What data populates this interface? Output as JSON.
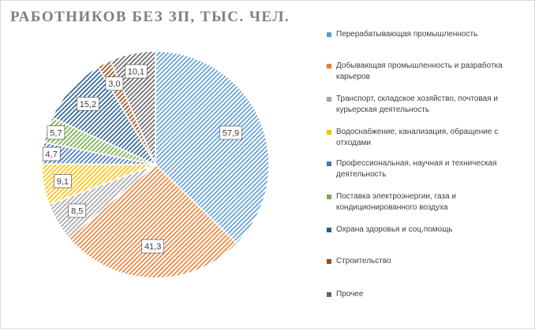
{
  "chart_data": {
    "type": "pie",
    "title": "РАБОТНИКОВ БЕЗ ЗП, ТЫС. ЧЕЛ.",
    "legend_position": "right",
    "slices": [
      {
        "label": "Перерабатывающая промышленность",
        "value": 57.9,
        "display": "57,9",
        "color": "#5b9bd5"
      },
      {
        "label": "Добывающая промышленность и разработка карьеров",
        "value": 41.3,
        "display": "41,3",
        "color": "#ed7d31"
      },
      {
        "label": "Транспорт, складское хозяйство, почтовая и курьерская деятельность",
        "value": 8.5,
        "display": "8,5",
        "color": "#a5a5a5"
      },
      {
        "label": "Водоснабжение, канализация, обращение с отходами",
        "value": 9.1,
        "display": "9,1",
        "color": "#ffc000"
      },
      {
        "label": "Профессиональная, научная и техническая деятельность",
        "value": 4.7,
        "display": "4,7",
        "color": "#4472c4"
      },
      {
        "label": "Поставка электроэнергии, газа и кондиционированного воздуха",
        "value": 5.7,
        "display": "5,7",
        "color": "#70ad47"
      },
      {
        "label": "Охрана здоровья и соц.помощь",
        "value": 15.2,
        "display": "15,2",
        "color": "#255e91"
      },
      {
        "label": "Строительство",
        "value": 3.0,
        "display": "3,0",
        "color": "#9e480e"
      },
      {
        "label": "Прочее",
        "value": 10.1,
        "display": "10,1",
        "color": "#636363"
      }
    ]
  }
}
